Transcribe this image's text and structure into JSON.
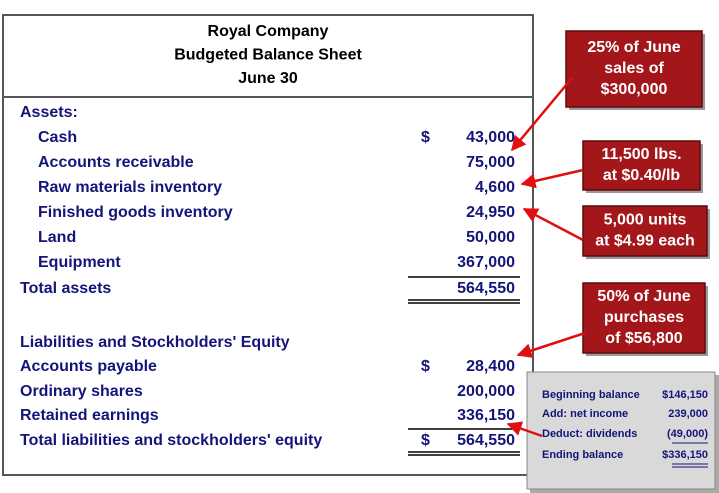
{
  "header": {
    "lines": [
      "Royal Company",
      "Budgeted Balance Sheet",
      "June 30"
    ]
  },
  "assets": {
    "heading": "Assets:",
    "rows": [
      {
        "label": "Cash",
        "currency": "$",
        "amount": "43,000"
      },
      {
        "label": "Accounts receivable",
        "amount": "75,000"
      },
      {
        "label": "Raw materials inventory",
        "amount": "4,600"
      },
      {
        "label": "Finished goods inventory",
        "amount": "24,950"
      },
      {
        "label": "Land",
        "amount": "50,000"
      },
      {
        "label": "Equipment",
        "amount": "367,000"
      }
    ],
    "total": {
      "label": "Total assets",
      "amount": "564,550"
    }
  },
  "liabilities": {
    "heading": "Liabilities and Stockholders' Equity",
    "rows": [
      {
        "label": "Accounts payable",
        "currency": "$",
        "amount": "28,400"
      },
      {
        "label": "Ordinary shares",
        "amount": "200,000"
      },
      {
        "label": "Retained earnings",
        "amount": "336,150"
      }
    ],
    "total": {
      "label": "Total liabilities and stockholders' equity",
      "currency": "$",
      "amount": "564,550"
    }
  },
  "callouts": [
    {
      "lines": [
        "25% of June",
        "sales of",
        "$300,000"
      ]
    },
    {
      "lines": [
        "11,500 lbs.",
        "at $0.40/lb"
      ]
    },
    {
      "lines": [
        "5,000 units",
        "at $4.99 each"
      ]
    },
    {
      "lines": [
        "50% of June",
        "purchases",
        "of $56,800"
      ]
    }
  ],
  "retained_earnings_detail": {
    "rows": [
      {
        "label": "Beginning balance",
        "amount": "$146,150"
      },
      {
        "label": "Add: net income",
        "amount": "239,000"
      },
      {
        "label": "Deduct: dividends",
        "amount": "(49,000)"
      },
      {
        "label": "Ending balance",
        "amount": "$336,150"
      }
    ]
  }
}
